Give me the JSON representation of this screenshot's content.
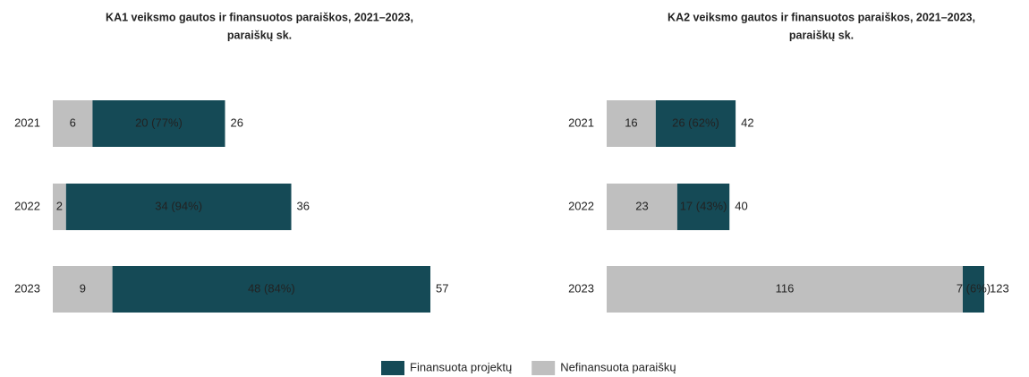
{
  "chart_data": [
    {
      "type": "stacked-bar-horizontal",
      "title": [
        "KA1 veiksmo gautos ir finansuotos paraiškos,  2021–2023,",
        "paraiškų sk."
      ],
      "categories": [
        "2021",
        "2022",
        "2023"
      ],
      "xlim": [
        0,
        57
      ],
      "series": [
        {
          "name": "Nefinansuota paraiškų",
          "color": "#bfbfbf",
          "values": [
            6,
            2,
            9
          ]
        },
        {
          "name": "Finansuota projektų",
          "color": "#154a56",
          "values": [
            20,
            34,
            48
          ],
          "value_labels": [
            "20 (77%)",
            "34 (94%)",
            "48 (84%)"
          ]
        }
      ],
      "totals": [
        26,
        36,
        57
      ]
    },
    {
      "type": "stacked-bar-horizontal",
      "title": [
        "KA2 veiksmo gautos ir finansuotos paraiškos,  2021–2023,",
        "paraiškų sk."
      ],
      "categories": [
        "2021",
        "2022",
        "2023"
      ],
      "xlim": [
        0,
        123
      ],
      "series": [
        {
          "name": "Nefinansuota paraiškų",
          "color": "#bfbfbf",
          "values": [
            16,
            23,
            116
          ]
        },
        {
          "name": "Finansuota projektų",
          "color": "#154a56",
          "values": [
            26,
            17,
            7
          ],
          "value_labels": [
            "26 (62%)",
            "17 (43%)",
            "7 (6%)"
          ]
        }
      ],
      "totals": [
        42,
        40,
        123
      ]
    }
  ]
}
